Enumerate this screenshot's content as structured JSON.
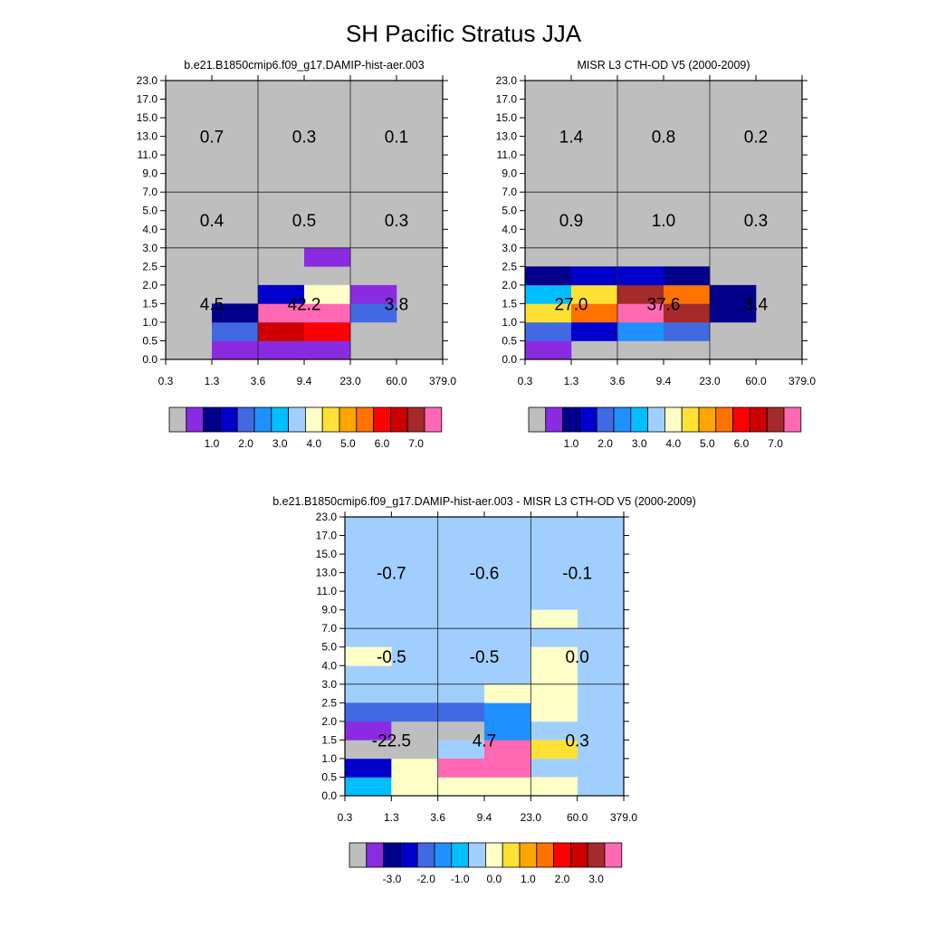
{
  "figure_title": "SH Pacific Stratus JJA",
  "colors": {
    "palette": [
      "#bebebe",
      "#8a2be2",
      "#00008b",
      "#0000cd",
      "#4169e1",
      "#1e90ff",
      "#00bfff",
      "#a0cfff",
      "#ffffc8",
      "#ffe135",
      "#ffa500",
      "#ff7200",
      "#ff0000",
      "#cd0000",
      "#a52a2a",
      "#ff69b4"
    ],
    "box_border": "#000000"
  },
  "chart_data": [
    {
      "id": "model",
      "type": "heatmap",
      "title": "b.e21.B1850cmip6.f09_g17.DAMIP-hist-aer.003",
      "x_tick_labels": [
        "0.3",
        "1.3",
        "3.6",
        "9.4",
        "23.0",
        "60.0",
        "379.0"
      ],
      "y_tick_labels": [
        "0.0",
        "0.5",
        "1.0",
        "1.5",
        "2.0",
        "2.5",
        "3.0",
        "4.0",
        "5.0",
        "7.0",
        "9.0",
        "11.0",
        "13.0",
        "15.0",
        "17.0",
        "23.0"
      ],
      "background_color_index": 0,
      "cells": [
        {
          "x": 1,
          "y": 0,
          "c": 1
        },
        {
          "x": 2,
          "y": 0,
          "c": 1
        },
        {
          "x": 3,
          "y": 0,
          "c": 1
        },
        {
          "x": 1,
          "y": 1,
          "c": 4
        },
        {
          "x": 2,
          "y": 1,
          "c": 13
        },
        {
          "x": 3,
          "y": 1,
          "c": 12
        },
        {
          "x": 1,
          "y": 2,
          "c": 2
        },
        {
          "x": 2,
          "y": 2,
          "c": 15
        },
        {
          "x": 3,
          "y": 2,
          "c": 15
        },
        {
          "x": 4,
          "y": 2,
          "c": 4
        },
        {
          "x": 2,
          "y": 3,
          "c": 3
        },
        {
          "x": 3,
          "y": 3,
          "c": 8
        },
        {
          "x": 4,
          "y": 3,
          "c": 1
        },
        {
          "x": 3,
          "y": 5,
          "c": 1
        }
      ],
      "region_totals": [
        {
          "label": "4.5",
          "col": 0,
          "row": 0
        },
        {
          "label": "42.2",
          "col": 1,
          "row": 0
        },
        {
          "label": "3.8",
          "col": 2,
          "row": 0
        },
        {
          "label": "0.4",
          "col": 0,
          "row": 1
        },
        {
          "label": "0.5",
          "col": 1,
          "row": 1
        },
        {
          "label": "0.3",
          "col": 2,
          "row": 1
        },
        {
          "label": "0.7",
          "col": 0,
          "row": 2
        },
        {
          "label": "0.3",
          "col": 1,
          "row": 2
        },
        {
          "label": "0.1",
          "col": 2,
          "row": 2
        }
      ],
      "colorbar": {
        "colors_from_palette": true,
        "labels": [
          "1.0",
          "2.0",
          "3.0",
          "4.0",
          "5.0",
          "6.0",
          "7.0"
        ]
      }
    },
    {
      "id": "obs",
      "type": "heatmap",
      "title": "MISR L3 CTH-OD V5 (2000-2009)",
      "x_tick_labels": [
        "0.3",
        "1.3",
        "3.6",
        "9.4",
        "23.0",
        "60.0",
        "379.0"
      ],
      "y_tick_labels": [
        "0.0",
        "0.5",
        "1.0",
        "1.5",
        "2.0",
        "2.5",
        "3.0",
        "4.0",
        "5.0",
        "7.0",
        "9.0",
        "11.0",
        "13.0",
        "15.0",
        "17.0",
        "23.0"
      ],
      "background_color_index": 0,
      "cells": [
        {
          "x": 0,
          "y": 0,
          "c": 1
        },
        {
          "x": 0,
          "y": 1,
          "c": 4
        },
        {
          "x": 1,
          "y": 1,
          "c": 3
        },
        {
          "x": 2,
          "y": 1,
          "c": 5
        },
        {
          "x": 3,
          "y": 1,
          "c": 4
        },
        {
          "x": 0,
          "y": 2,
          "c": 9
        },
        {
          "x": 1,
          "y": 2,
          "c": 11
        },
        {
          "x": 2,
          "y": 2,
          "c": 15
        },
        {
          "x": 3,
          "y": 2,
          "c": 14
        },
        {
          "x": 4,
          "y": 2,
          "c": 2
        },
        {
          "x": 0,
          "y": 3,
          "c": 6
        },
        {
          "x": 1,
          "y": 3,
          "c": 9
        },
        {
          "x": 2,
          "y": 3,
          "c": 14
        },
        {
          "x": 3,
          "y": 3,
          "c": 11
        },
        {
          "x": 4,
          "y": 3,
          "c": 2
        },
        {
          "x": 0,
          "y": 4,
          "c": 2
        },
        {
          "x": 1,
          "y": 4,
          "c": 3
        },
        {
          "x": 2,
          "y": 4,
          "c": 3
        },
        {
          "x": 3,
          "y": 4,
          "c": 2
        }
      ],
      "region_totals": [
        {
          "label": "27.0",
          "col": 0,
          "row": 0
        },
        {
          "label": "37.6",
          "col": 1,
          "row": 0
        },
        {
          "label": "3.4",
          "col": 2,
          "row": 0
        },
        {
          "label": "0.9",
          "col": 0,
          "row": 1
        },
        {
          "label": "1.0",
          "col": 1,
          "row": 1
        },
        {
          "label": "0.3",
          "col": 2,
          "row": 1
        },
        {
          "label": "1.4",
          "col": 0,
          "row": 2
        },
        {
          "label": "0.8",
          "col": 1,
          "row": 2
        },
        {
          "label": "0.2",
          "col": 2,
          "row": 2
        }
      ],
      "colorbar": {
        "colors_from_palette": true,
        "labels": [
          "1.0",
          "2.0",
          "3.0",
          "4.0",
          "5.0",
          "6.0",
          "7.0"
        ]
      }
    },
    {
      "id": "diff",
      "type": "heatmap",
      "title": "b.e21.B1850cmip6.f09_g17.DAMIP-hist-aer.003 - MISR L3 CTH-OD V5 (2000-2009)",
      "x_tick_labels": [
        "0.3",
        "1.3",
        "3.6",
        "9.4",
        "23.0",
        "60.0",
        "379.0"
      ],
      "y_tick_labels": [
        "0.0",
        "0.5",
        "1.0",
        "1.5",
        "2.0",
        "2.5",
        "3.0",
        "4.0",
        "5.0",
        "7.0",
        "9.0",
        "11.0",
        "13.0",
        "15.0",
        "17.0",
        "23.0"
      ],
      "background_color_index": 7,
      "cells": [
        {
          "x": 0,
          "y": 0,
          "c": 6
        },
        {
          "x": 1,
          "y": 0,
          "c": 8
        },
        {
          "x": 2,
          "y": 0,
          "c": 8
        },
        {
          "x": 3,
          "y": 0,
          "c": 8
        },
        {
          "x": 4,
          "y": 0,
          "c": 8
        },
        {
          "x": 0,
          "y": 1,
          "c": 3
        },
        {
          "x": 1,
          "y": 1,
          "c": 8
        },
        {
          "x": 2,
          "y": 1,
          "c": 15
        },
        {
          "x": 3,
          "y": 1,
          "c": 15
        },
        {
          "x": 0,
          "y": 2,
          "c": 0
        },
        {
          "x": 1,
          "y": 2,
          "c": 0
        },
        {
          "x": 3,
          "y": 2,
          "c": 15
        },
        {
          "x": 4,
          "y": 2,
          "c": 9
        },
        {
          "x": 0,
          "y": 3,
          "c": 1
        },
        {
          "x": 1,
          "y": 3,
          "c": 0
        },
        {
          "x": 2,
          "y": 3,
          "c": 0
        },
        {
          "x": 3,
          "y": 3,
          "c": 5
        },
        {
          "x": 0,
          "y": 4,
          "c": 4
        },
        {
          "x": 1,
          "y": 4,
          "c": 4
        },
        {
          "x": 2,
          "y": 4,
          "c": 4
        },
        {
          "x": 3,
          "y": 4,
          "c": 5
        },
        {
          "x": 4,
          "y": 4,
          "c": 8
        },
        {
          "x": 3,
          "y": 5,
          "c": 8
        },
        {
          "x": 4,
          "y": 5,
          "c": 8
        },
        {
          "x": 4,
          "y": 6,
          "c": 8
        },
        {
          "x": 0,
          "y": 7,
          "c": 8
        },
        {
          "x": 4,
          "y": 7,
          "c": 8
        },
        {
          "x": 4,
          "y": 9,
          "c": 8
        }
      ],
      "region_totals": [
        {
          "label": "-22.5",
          "col": 0,
          "row": 0
        },
        {
          "label": "4.7",
          "col": 1,
          "row": 0
        },
        {
          "label": "0.3",
          "col": 2,
          "row": 0
        },
        {
          "label": "-0.5",
          "col": 0,
          "row": 1
        },
        {
          "label": "-0.5",
          "col": 1,
          "row": 1
        },
        {
          "label": "0.0",
          "col": 2,
          "row": 1
        },
        {
          "label": "-0.7",
          "col": 0,
          "row": 2
        },
        {
          "label": "-0.6",
          "col": 1,
          "row": 2
        },
        {
          "label": "-0.1",
          "col": 2,
          "row": 2
        }
      ],
      "colorbar": {
        "colors_from_palette": true,
        "labels": [
          "-3.0",
          "-2.0",
          "-1.0",
          "0.0",
          "1.0",
          "2.0",
          "3.0"
        ]
      }
    }
  ]
}
